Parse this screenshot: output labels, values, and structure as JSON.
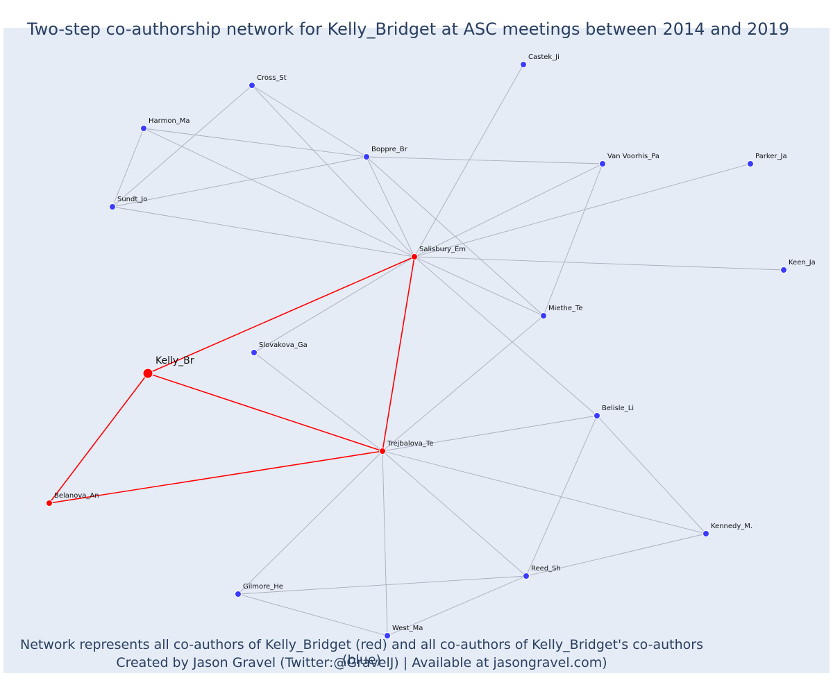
{
  "title": "Two-step co-authorship network for Kelly_Bridget at ASC meetings between 2014 and 2019",
  "captions": {
    "line1": "Network represents all co-authors of Kelly_Bridget (red) and all co-authors of Kelly_Bridget's co-authors (blue)",
    "line2": "Created by Jason Gravel (Twitter:@GravelJ) | Available at jasongravel.com)"
  },
  "colors": {
    "plot_bg": "#e5ecf6",
    "red": "#ff0000",
    "blue": "#3b3bff",
    "edge_gray": "#a9adbb",
    "title": "#2a3f5f"
  },
  "nodes": [
    {
      "id": "Kelly_Br",
      "group": "focal"
    },
    {
      "id": "Salisbury_Em",
      "group": "red"
    },
    {
      "id": "Trejbalova_Te",
      "group": "red"
    },
    {
      "id": "Belanova_An",
      "group": "red"
    },
    {
      "id": "Castek_Ji",
      "group": "blue"
    },
    {
      "id": "Cross_St",
      "group": "blue"
    },
    {
      "id": "Harmon_Ma",
      "group": "blue"
    },
    {
      "id": "Boppre_Br",
      "group": "blue"
    },
    {
      "id": "Van Voorhis_Pa",
      "group": "blue"
    },
    {
      "id": "Parker_Ja",
      "group": "blue"
    },
    {
      "id": "Sundt_Jo",
      "group": "blue"
    },
    {
      "id": "Keen_Ja",
      "group": "blue"
    },
    {
      "id": "Miethe_Te",
      "group": "blue"
    },
    {
      "id": "Slovakova_Ga",
      "group": "blue"
    },
    {
      "id": "Belisle_Li",
      "group": "blue"
    },
    {
      "id": "Kennedy_M.",
      "group": "blue"
    },
    {
      "id": "Reed_Sh",
      "group": "blue"
    },
    {
      "id": "Gilmore_He",
      "group": "blue"
    },
    {
      "id": "West_Ma",
      "group": "blue"
    }
  ],
  "edges": [
    [
      "Kelly_Br",
      "Salisbury_Em"
    ],
    [
      "Kelly_Br",
      "Trejbalova_Te"
    ],
    [
      "Kelly_Br",
      "Belanova_An"
    ],
    [
      "Belanova_An",
      "Trejbalova_Te"
    ],
    [
      "Salisbury_Em",
      "Trejbalova_Te"
    ],
    [
      "Salisbury_Em",
      "Castek_Ji"
    ],
    [
      "Salisbury_Em",
      "Cross_St"
    ],
    [
      "Salisbury_Em",
      "Harmon_Ma"
    ],
    [
      "Salisbury_Em",
      "Boppre_Br"
    ],
    [
      "Salisbury_Em",
      "Van Voorhis_Pa"
    ],
    [
      "Salisbury_Em",
      "Parker_Ja"
    ],
    [
      "Salisbury_Em",
      "Sundt_Jo"
    ],
    [
      "Salisbury_Em",
      "Keen_Ja"
    ],
    [
      "Salisbury_Em",
      "Miethe_Te"
    ],
    [
      "Salisbury_Em",
      "Slovakova_Ga"
    ],
    [
      "Salisbury_Em",
      "Belisle_Li"
    ],
    [
      "Cross_St",
      "Boppre_Br"
    ],
    [
      "Cross_St",
      "Sundt_Jo"
    ],
    [
      "Harmon_Ma",
      "Boppre_Br"
    ],
    [
      "Harmon_Ma",
      "Sundt_Jo"
    ],
    [
      "Sundt_Jo",
      "Boppre_Br"
    ],
    [
      "Boppre_Br",
      "Van Voorhis_Pa"
    ],
    [
      "Boppre_Br",
      "Miethe_Te"
    ],
    [
      "Van Voorhis_Pa",
      "Miethe_Te"
    ],
    [
      "Miethe_Te",
      "Trejbalova_Te"
    ],
    [
      "Slovakova_Ga",
      "Trejbalova_Te"
    ],
    [
      "Trejbalova_Te",
      "Belisle_Li"
    ],
    [
      "Trejbalova_Te",
      "Kennedy_M."
    ],
    [
      "Trejbalova_Te",
      "Reed_Sh"
    ],
    [
      "Trejbalova_Te",
      "Gilmore_He"
    ],
    [
      "Trejbalova_Te",
      "West_Ma"
    ],
    [
      "Belisle_Li",
      "Kennedy_M."
    ],
    [
      "Belisle_Li",
      "Reed_Sh"
    ],
    [
      "Kennedy_M.",
      "Reed_Sh"
    ],
    [
      "Reed_Sh",
      "Gilmore_He"
    ],
    [
      "Reed_Sh",
      "West_Ma"
    ],
    [
      "Gilmore_He",
      "West_Ma"
    ]
  ]
}
